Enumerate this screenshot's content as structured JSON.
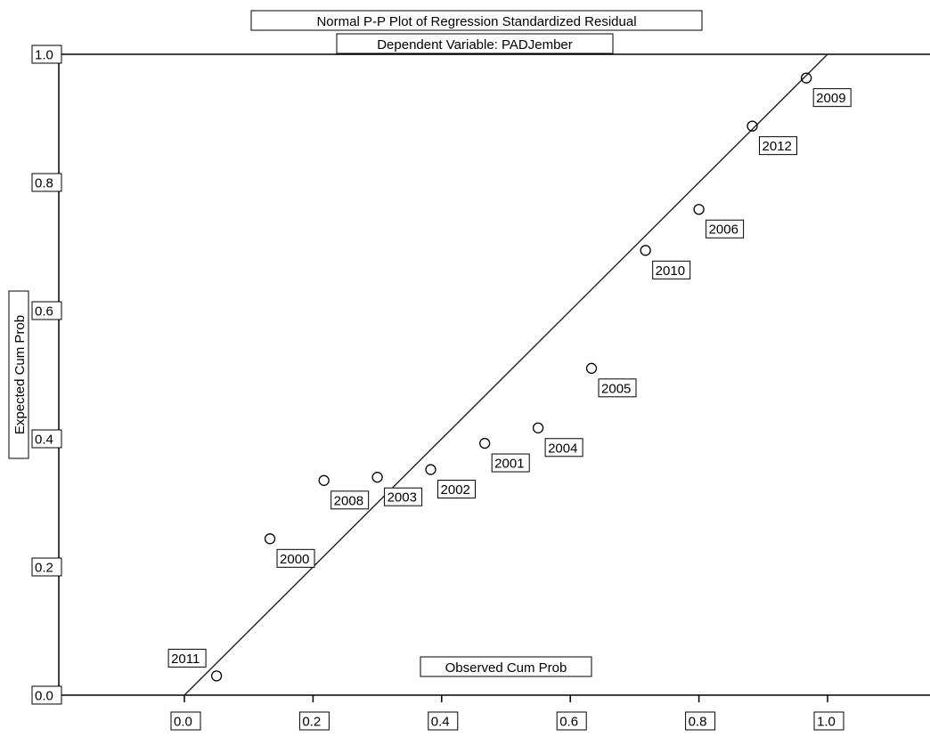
{
  "chart_data": {
    "type": "scatter",
    "title": "Normal P-P Plot of Regression Standardized Residual",
    "subtitle": "Dependent Variable: PADJember",
    "xlabel": "Observed Cum Prob",
    "ylabel": "Expected Cum Prob",
    "xlim": [
      -0.2,
      1.2
    ],
    "ylim": [
      0.0,
      1.0
    ],
    "x_ticks": [
      "0.0",
      "0.2",
      "0.4",
      "0.6",
      "0.8",
      "1.0"
    ],
    "y_ticks": [
      "0.0",
      "0.2",
      "0.4",
      "0.6",
      "0.8",
      "1.0"
    ],
    "reference_line": [
      [
        0.0,
        0.0
      ],
      [
        1.0,
        1.0
      ]
    ],
    "grid": false,
    "legend": "none",
    "marker": "hollow-circle",
    "points": [
      {
        "label": "2011",
        "x": 0.05,
        "y": 0.03
      },
      {
        "label": "2000",
        "x": 0.133,
        "y": 0.244
      },
      {
        "label": "2008",
        "x": 0.217,
        "y": 0.335
      },
      {
        "label": "2003",
        "x": 0.3,
        "y": 0.34
      },
      {
        "label": "2002",
        "x": 0.383,
        "y": 0.352
      },
      {
        "label": "2001",
        "x": 0.467,
        "y": 0.393
      },
      {
        "label": "2004",
        "x": 0.55,
        "y": 0.417
      },
      {
        "label": "2005",
        "x": 0.633,
        "y": 0.51
      },
      {
        "label": "2010",
        "x": 0.717,
        "y": 0.694
      },
      {
        "label": "2006",
        "x": 0.8,
        "y": 0.758
      },
      {
        "label": "2012",
        "x": 0.883,
        "y": 0.888
      },
      {
        "label": "2009",
        "x": 0.967,
        "y": 0.963
      }
    ]
  }
}
